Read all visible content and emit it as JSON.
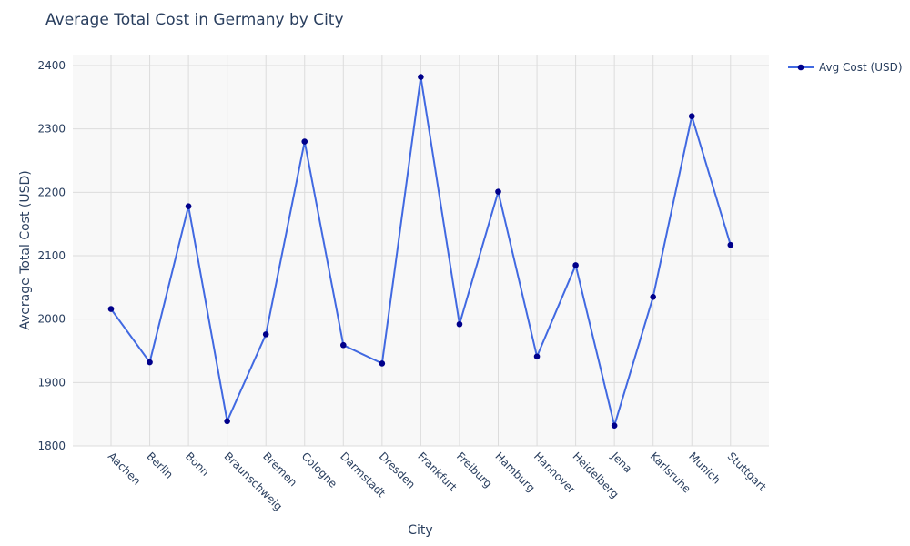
{
  "chart_data": {
    "type": "line",
    "title": "Average Total Cost in Germany by City",
    "xlabel": "City",
    "ylabel": "Average Total Cost (USD)",
    "categories": [
      "Aachen",
      "Berlin",
      "Bonn",
      "Braunschweig",
      "Bremen",
      "Cologne",
      "Darmstadt",
      "Dresden",
      "Frankfurt",
      "Freiburg",
      "Hamburg",
      "Hannover",
      "Heidelberg",
      "Jena",
      "Karlsruhe",
      "Munich",
      "Stuttgart"
    ],
    "series": [
      {
        "name": "Avg Cost (USD)",
        "values": [
          2016,
          1932,
          2178,
          1839,
          1976,
          2280,
          1959,
          1930,
          2382,
          1992,
          2201,
          1941,
          2085,
          1832,
          2035,
          2320,
          2117
        ],
        "line_color": "#4169e1",
        "marker_color": "#00008b"
      }
    ],
    "ylim": [
      1800,
      2420
    ],
    "yticks": [
      1800,
      1900,
      2000,
      2100,
      2200,
      2300,
      2400
    ],
    "grid": true,
    "legend_position": "top-right",
    "plot_bg": "#f8f8f8",
    "grid_color": "#dcdcdc"
  }
}
